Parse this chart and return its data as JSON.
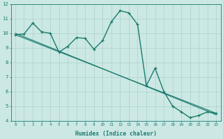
{
  "xlabel": "Humidex (Indice chaleur)",
  "ylabel": "",
  "bg_color": "#cce8e4",
  "line_color": "#1a7a6e",
  "grid_color": "#aad0cc",
  "xlim": [
    -0.5,
    23.5
  ],
  "ylim": [
    4,
    12
  ],
  "yticks": [
    4,
    5,
    6,
    7,
    8,
    9,
    10,
    11,
    12
  ],
  "xtick_labels": [
    "0",
    "1",
    "2",
    "3",
    "4",
    "5",
    "6",
    "7",
    "8",
    "9",
    "10",
    "11",
    "12",
    "13",
    "14",
    "15",
    "16",
    "17",
    "18",
    "19",
    "20",
    "21",
    "22",
    "23"
  ],
  "line1_x": [
    0,
    1,
    2,
    3,
    4,
    5,
    6,
    7,
    8,
    9,
    10,
    11,
    12,
    13,
    14,
    15,
    16,
    17,
    18,
    19,
    20,
    21,
    22,
    23
  ],
  "line1_y": [
    9.9,
    9.95,
    10.7,
    10.1,
    10.0,
    8.7,
    9.1,
    9.7,
    9.65,
    8.9,
    9.5,
    10.8,
    11.55,
    11.4,
    10.6,
    6.4,
    7.6,
    6.0,
    5.0,
    4.6,
    4.2,
    4.35,
    4.6,
    4.5
  ],
  "line2_x": [
    0,
    23
  ],
  "line2_y": [
    10.0,
    4.4
  ],
  "line3_x": [
    0,
    23
  ],
  "line3_y": [
    9.9,
    4.5
  ]
}
